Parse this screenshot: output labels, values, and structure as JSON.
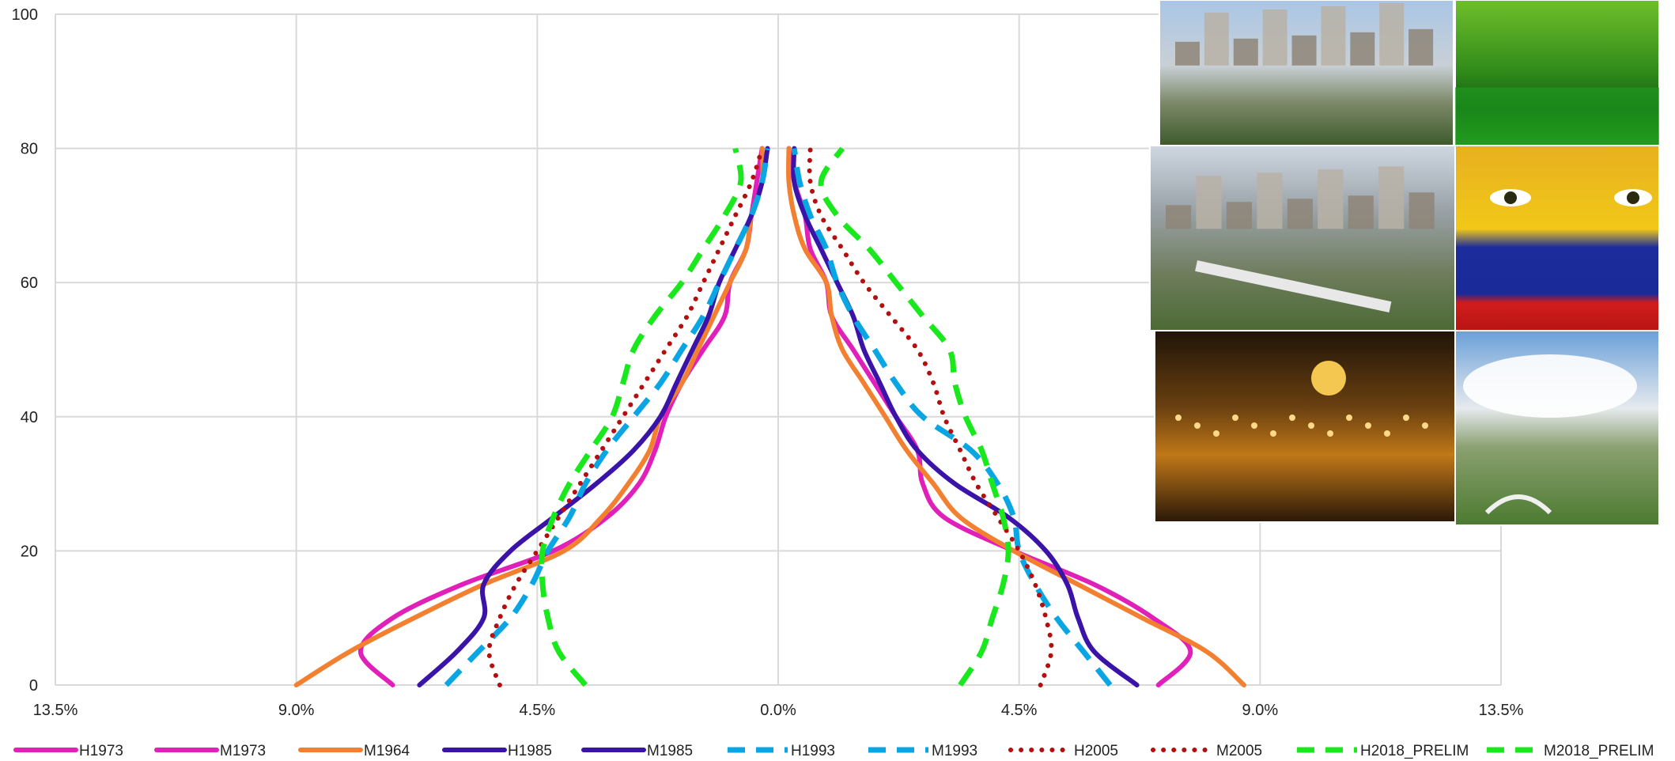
{
  "chart_data": {
    "type": "line",
    "title": "",
    "xlabel": "",
    "ylabel": "",
    "x_tick_labels": [
      "13.5%",
      "9.0%",
      "4.5%",
      "0.0%",
      "4.5%",
      "9.0%",
      "13.5%"
    ],
    "x_tick_values": [
      -13.5,
      -9.0,
      -4.5,
      0.0,
      4.5,
      9.0,
      13.5
    ],
    "y_tick_labels": [
      "0",
      "20",
      "40",
      "60",
      "80",
      "100"
    ],
    "y_tick_values": [
      0,
      20,
      40,
      60,
      80,
      100
    ],
    "xlim": [
      -13.5,
      13.5
    ],
    "ylim": [
      0,
      100
    ],
    "grid": true,
    "legend_position": "bottom",
    "y": [
      0,
      5,
      10,
      15,
      20,
      25,
      30,
      35,
      40,
      45,
      50,
      55,
      60,
      65,
      70,
      75,
      80
    ],
    "series": [
      {
        "name": "H1973",
        "side": "left",
        "color": "#e020b8",
        "dash": "solid",
        "values": [
          -7.2,
          -7.8,
          -7.2,
          -5.9,
          -4.2,
          -3.2,
          -2.6,
          -2.3,
          -2.1,
          -1.8,
          -1.4,
          -1.0,
          -0.9,
          -0.6,
          -0.5,
          -0.4,
          -0.3
        ]
      },
      {
        "name": "M1973",
        "side": "right",
        "color": "#e020b8",
        "dash": "solid",
        "values": [
          7.1,
          7.7,
          7.0,
          5.9,
          4.4,
          3.1,
          2.7,
          2.6,
          2.2,
          1.8,
          1.4,
          1.0,
          0.9,
          0.6,
          0.5,
          0.3,
          0.2
        ]
      },
      {
        "name": "M1964",
        "side": "both",
        "color": "#f28030",
        "dash": "solid",
        "values_left": [
          -9.0,
          -8.0,
          -6.8,
          -5.5,
          -4.0,
          -3.3,
          -2.8,
          -2.4,
          -2.2,
          -1.8,
          -1.5,
          -1.2,
          -0.9,
          -0.6,
          -0.5,
          -0.3,
          -0.3
        ],
        "values_right": [
          8.7,
          8.0,
          6.8,
          5.6,
          4.4,
          3.4,
          2.9,
          2.4,
          2.0,
          1.6,
          1.2,
          1.0,
          0.9,
          0.5,
          0.3,
          0.2,
          0.2
        ]
      },
      {
        "name": "H1985",
        "side": "left",
        "color": "#3a14a8",
        "dash": "solid",
        "values": [
          -6.7,
          -6.0,
          -5.5,
          -5.5,
          -5.0,
          -4.2,
          -3.4,
          -2.7,
          -2.2,
          -1.9,
          -1.6,
          -1.3,
          -1.1,
          -0.8,
          -0.5,
          -0.3,
          -0.2
        ]
      },
      {
        "name": "M1985",
        "side": "right",
        "color": "#3a14a8",
        "dash": "solid",
        "values": [
          6.7,
          5.9,
          5.6,
          5.4,
          5.0,
          4.3,
          3.3,
          2.6,
          2.2,
          1.9,
          1.6,
          1.4,
          1.1,
          0.8,
          0.5,
          0.3,
          0.3
        ]
      },
      {
        "name": "H1993",
        "side": "left",
        "color": "#0aa6e4",
        "dash": "dashed",
        "values": [
          -6.2,
          -5.6,
          -5.0,
          -4.6,
          -4.3,
          -3.9,
          -3.6,
          -3.2,
          -2.7,
          -2.2,
          -1.8,
          -1.4,
          -1.1,
          -0.8,
          -0.5,
          -0.3,
          -0.2
        ]
      },
      {
        "name": "M1993",
        "side": "right",
        "color": "#0aa6e4",
        "dash": "dashed",
        "values": [
          6.2,
          5.7,
          5.2,
          4.8,
          4.5,
          4.4,
          4.1,
          3.6,
          2.7,
          2.2,
          1.8,
          1.4,
          1.1,
          0.9,
          0.6,
          0.4,
          0.3
        ]
      },
      {
        "name": "H2005",
        "side": "left",
        "color": "#b40e0e",
        "dash": "dotted",
        "values": [
          -5.2,
          -5.4,
          -5.2,
          -4.9,
          -4.5,
          -4.1,
          -3.7,
          -3.3,
          -2.9,
          -2.5,
          -2.1,
          -1.7,
          -1.4,
          -1.1,
          -0.8,
          -0.5,
          -0.3
        ]
      },
      {
        "name": "M2005",
        "side": "right",
        "color": "#b40e0e",
        "dash": "dotted",
        "values": [
          4.9,
          5.1,
          5.0,
          4.8,
          4.5,
          4.1,
          3.7,
          3.4,
          3.1,
          2.9,
          2.6,
          2.1,
          1.6,
          1.2,
          0.8,
          0.6,
          0.6
        ]
      },
      {
        "name": "H2018_PRELIM",
        "side": "left",
        "color": "#18e81c",
        "dash": "dashed",
        "values": [
          -3.6,
          -4.1,
          -4.3,
          -4.4,
          -4.4,
          -4.2,
          -3.9,
          -3.5,
          -3.1,
          -2.9,
          -2.7,
          -2.3,
          -1.8,
          -1.4,
          -1.0,
          -0.7,
          -0.8
        ]
      },
      {
        "name": "M2018_PRELIM",
        "side": "right",
        "color": "#18e81c",
        "dash": "dashed",
        "values": [
          3.4,
          3.8,
          4.0,
          4.2,
          4.3,
          4.2,
          4.0,
          3.8,
          3.5,
          3.3,
          3.2,
          2.7,
          2.2,
          1.7,
          1.1,
          0.8,
          1.2
        ]
      }
    ]
  },
  "legend": [
    {
      "label": "H1973",
      "color": "#e020b8",
      "dash": "solid"
    },
    {
      "label": "M1973",
      "color": "#e020b8",
      "dash": "solid"
    },
    {
      "label": "M1964",
      "color": "#f28030",
      "dash": "solid"
    },
    {
      "label": "H1985",
      "color": "#3a14a8",
      "dash": "solid"
    },
    {
      "label": "M1985",
      "color": "#3a14a8",
      "dash": "solid"
    },
    {
      "label": "H1993",
      "color": "#0aa6e4",
      "dash": "dashed"
    },
    {
      "label": "M1993",
      "color": "#0aa6e4",
      "dash": "dashed"
    },
    {
      "label": "H2005",
      "color": "#b40e0e",
      "dash": "dotted"
    },
    {
      "label": "M2005",
      "color": "#b40e0e",
      "dash": "dotted"
    },
    {
      "label": "H2018_PRELIM",
      "color": "#18e81c",
      "dash": "dashed"
    },
    {
      "label": "M2018_PRELIM",
      "color": "#18e81c",
      "dash": "dashed"
    }
  ],
  "photos": [
    {
      "name": "city-skyline-photo",
      "kind": "city"
    },
    {
      "name": "green-forest-river-photo",
      "kind": "forest"
    },
    {
      "name": "metro-train-city-photo",
      "kind": "metro"
    },
    {
      "name": "flag-painted-face-photo",
      "kind": "face"
    },
    {
      "name": "night-plaza-cathedral-photo",
      "kind": "night"
    },
    {
      "name": "bridge-landscape-clouds-photo",
      "kind": "landscape"
    }
  ]
}
